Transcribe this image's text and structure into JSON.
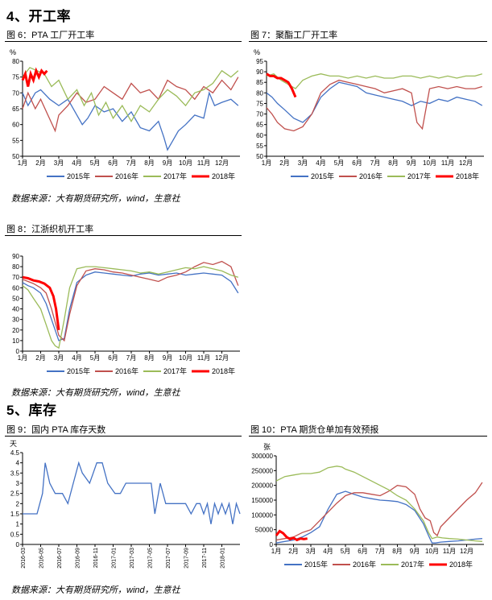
{
  "sections": {
    "s4": "4、开工率",
    "s5": "5、库存"
  },
  "sources": [
    "数据来源：大有期货研究所，wind，生意社",
    "数据来源：大有期货研究所，wind，生意社",
    "数据来源：大有期货研究所，wind，生意社"
  ],
  "colors": {
    "y2015": "#4472c4",
    "y2016": "#c0504d",
    "y2017": "#9bbb59",
    "y2018": "#ff0000",
    "line": "#4472c4"
  },
  "chart_data": [
    {
      "id": "fig6",
      "type": "line",
      "caption": "图 6：PTA 工厂开工率",
      "unit": "%",
      "ylim": [
        50,
        80
      ],
      "yticks": [
        50,
        55,
        60,
        65,
        70,
        75,
        80
      ],
      "categories": [
        "1月",
        "2月",
        "3月",
        "4月",
        "5月",
        "6月",
        "7月",
        "8月",
        "9月",
        "10月",
        "11月",
        "12月"
      ],
      "series": [
        {
          "name": "2015年",
          "key": "y2015",
          "x": [
            0,
            0.3,
            0.7,
            1,
            1.5,
            2,
            2.5,
            3,
            3.3,
            3.6,
            4,
            4.5,
            5,
            5.5,
            6,
            6.5,
            7,
            7.5,
            7.8,
            8,
            8.3,
            8.6,
            9,
            9.5,
            10,
            10.3,
            10.6,
            11,
            11.5,
            11.9
          ],
          "y": [
            70,
            66,
            70,
            71,
            68,
            66,
            68,
            63,
            60,
            62,
            66,
            64,
            65,
            61,
            64,
            59,
            58,
            61,
            56,
            52,
            55,
            58,
            60,
            63,
            62,
            70,
            66,
            67,
            68,
            66
          ]
        },
        {
          "name": "2016年",
          "key": "y2016",
          "x": [
            0,
            0.3,
            0.7,
            1,
            1.4,
            1.8,
            2,
            2.5,
            3,
            3.5,
            4,
            4.5,
            5,
            5.5,
            6,
            6.5,
            7,
            7.5,
            8,
            8.5,
            9,
            9.5,
            10,
            10.5,
            11,
            11.5,
            11.9
          ],
          "y": [
            65,
            70,
            65,
            68,
            63,
            58,
            63,
            66,
            70,
            67,
            68,
            72,
            70,
            68,
            73,
            70,
            71,
            68,
            74,
            72,
            71,
            68,
            72,
            70,
            74,
            71,
            75
          ]
        },
        {
          "name": "2017年",
          "key": "y2017",
          "x": [
            0,
            0.4,
            0.8,
            1.2,
            1.6,
            2,
            2.5,
            3,
            3.4,
            3.8,
            4.2,
            4.6,
            5,
            5.5,
            6,
            6.5,
            7,
            7.5,
            8,
            8.5,
            9,
            9.5,
            10,
            10.5,
            11,
            11.5,
            11.9
          ],
          "y": [
            75,
            78,
            77,
            76,
            72,
            74,
            68,
            71,
            66,
            70,
            63,
            67,
            62,
            66,
            61,
            66,
            64,
            68,
            71,
            69,
            66,
            70,
            71,
            73,
            77,
            75,
            77
          ]
        },
        {
          "name": "2018年",
          "key": "y2018",
          "x": [
            0,
            0.15,
            0.3,
            0.45,
            0.6,
            0.75,
            0.9,
            1.05,
            1.2,
            1.35
          ],
          "y": [
            74,
            76,
            72,
            76,
            74,
            77,
            75,
            77,
            76,
            77
          ]
        }
      ]
    },
    {
      "id": "fig7",
      "type": "line",
      "caption": "图 7：聚酯工厂开工率",
      "unit": "%",
      "ylim": [
        50,
        95
      ],
      "yticks": [
        50,
        55,
        60,
        65,
        70,
        75,
        80,
        85,
        90,
        95
      ],
      "categories": [
        "1月",
        "2月",
        "3月",
        "4月",
        "5月",
        "6月",
        "7月",
        "8月",
        "9月",
        "10月",
        "11月",
        "12月"
      ],
      "series": [
        {
          "name": "2015年",
          "key": "y2015",
          "x": [
            0,
            0.3,
            0.6,
            1,
            1.5,
            2,
            2.5,
            3,
            3.5,
            4,
            4.5,
            5,
            5.5,
            6,
            6.5,
            7,
            7.5,
            8,
            8.5,
            9,
            9.5,
            10,
            10.5,
            11,
            11.5,
            11.9
          ],
          "y": [
            80,
            78,
            75,
            72,
            68,
            66,
            70,
            78,
            82,
            85,
            84,
            83,
            80,
            79,
            78,
            77,
            76,
            74,
            76,
            75,
            77,
            76,
            78,
            77,
            76,
            74
          ]
        },
        {
          "name": "2016年",
          "key": "y2016",
          "x": [
            0,
            0.3,
            0.6,
            1,
            1.5,
            2,
            2.5,
            3,
            3.5,
            4,
            4.5,
            5,
            5.5,
            6,
            6.5,
            7,
            7.5,
            8,
            8.3,
            8.6,
            9,
            9.5,
            10,
            10.5,
            11,
            11.5,
            11.9
          ],
          "y": [
            73,
            70,
            66,
            63,
            62,
            64,
            70,
            80,
            84,
            86,
            85,
            84,
            83,
            82,
            80,
            81,
            82,
            80,
            66,
            63,
            82,
            83,
            82,
            83,
            82,
            82,
            83
          ]
        },
        {
          "name": "2017年",
          "key": "y2017",
          "x": [
            0,
            0.4,
            0.8,
            1.2,
            1.6,
            2,
            2.5,
            3,
            3.5,
            4,
            4.5,
            5,
            5.5,
            6,
            6.5,
            7,
            7.5,
            8,
            8.5,
            9,
            9.5,
            10,
            10.5,
            11,
            11.5,
            11.9
          ],
          "y": [
            88,
            89,
            86,
            84,
            82,
            86,
            88,
            89,
            88,
            88,
            87,
            88,
            87,
            88,
            87,
            87,
            88,
            88,
            87,
            88,
            87,
            88,
            87,
            88,
            88,
            89
          ]
        },
        {
          "name": "2018年",
          "key": "y2018",
          "x": [
            0,
            0.2,
            0.4,
            0.6,
            0.8,
            1,
            1.2,
            1.4,
            1.6
          ],
          "y": [
            89,
            88,
            88,
            87,
            87,
            86,
            85,
            82,
            78
          ]
        }
      ]
    },
    {
      "id": "fig8",
      "type": "line",
      "caption": "图 8：江浙织机开工率",
      "unit": "",
      "ylim": [
        0,
        90
      ],
      "yticks": [
        0,
        10,
        20,
        30,
        40,
        50,
        60,
        70,
        80,
        90
      ],
      "categories": [
        "1月",
        "2月",
        "3月",
        "4月",
        "5月",
        "6月",
        "7月",
        "8月",
        "9月",
        "10月",
        "11月",
        "12月"
      ],
      "series": [
        {
          "name": "2015年",
          "key": "y2015",
          "x": [
            0,
            0.3,
            0.6,
            1,
            1.3,
            1.6,
            2,
            2.3,
            2.6,
            3,
            3.5,
            4,
            4.5,
            5,
            5.5,
            6,
            6.5,
            7,
            7.5,
            8,
            8.5,
            9,
            9.5,
            10,
            10.5,
            11,
            11.5,
            11.9
          ],
          "y": [
            65,
            62,
            60,
            55,
            45,
            30,
            10,
            12,
            40,
            65,
            72,
            75,
            74,
            73,
            72,
            71,
            73,
            74,
            72,
            73,
            74,
            72,
            73,
            74,
            73,
            72,
            66,
            55
          ]
        },
        {
          "name": "2016年",
          "key": "y2016",
          "x": [
            0,
            0.3,
            0.6,
            1,
            1.3,
            1.6,
            2,
            2.3,
            2.6,
            3,
            3.5,
            4,
            4.5,
            5,
            5.5,
            6,
            6.5,
            7,
            7.5,
            8,
            8.5,
            9,
            9.5,
            10,
            10.5,
            11,
            11.5,
            11.9
          ],
          "y": [
            68,
            66,
            64,
            60,
            55,
            40,
            15,
            10,
            35,
            62,
            76,
            78,
            77,
            75,
            74,
            72,
            70,
            68,
            66,
            70,
            72,
            75,
            80,
            84,
            82,
            85,
            80,
            62
          ]
        },
        {
          "name": "2017年",
          "key": "y2017",
          "x": [
            0,
            0.3,
            0.6,
            1,
            1.3,
            1.6,
            1.8,
            2,
            2.3,
            2.6,
            3,
            3.5,
            4,
            4.5,
            5,
            5.5,
            6,
            6.5,
            7,
            7.5,
            8,
            8.5,
            9,
            9.5,
            10,
            10.5,
            11,
            11.5,
            11.9
          ],
          "y": [
            62,
            58,
            50,
            40,
            25,
            10,
            5,
            3,
            30,
            60,
            78,
            80,
            80,
            79,
            78,
            77,
            76,
            74,
            75,
            73,
            75,
            77,
            79,
            78,
            80,
            78,
            76,
            72,
            70
          ]
        },
        {
          "name": "2018年",
          "key": "y2018",
          "x": [
            0,
            0.3,
            0.6,
            0.9,
            1.2,
            1.5,
            1.7,
            1.85,
            2
          ],
          "y": [
            70,
            69,
            67,
            66,
            64,
            60,
            52,
            40,
            20
          ]
        }
      ]
    },
    {
      "id": "fig9",
      "type": "line",
      "caption": "图 9：国内 PTA 库存天数",
      "unit": "天",
      "ylim": [
        0,
        4.5
      ],
      "yticks": [
        0,
        0.5,
        1,
        1.5,
        2,
        2.5,
        3,
        3.5,
        4,
        4.5
      ],
      "categories": [
        "2016-03",
        "2016-05",
        "2016-07",
        "2016-09",
        "2016-11",
        "2017-01",
        "2017-03",
        "2017-05",
        "2017-07",
        "2017-09",
        "2017-11",
        "2018-01"
      ],
      "series": [
        {
          "name": "",
          "key": "line",
          "x": [
            0,
            0.8,
            1.1,
            1.25,
            1.5,
            1.8,
            2.2,
            2.5,
            2.8,
            3.1,
            3.3,
            3.7,
            3.9,
            4.1,
            4.4,
            4.7,
            5.1,
            5.4,
            5.7,
            6,
            6.3,
            6.6,
            6.9,
            7.1,
            7.3,
            7.6,
            7.9,
            8.2,
            8.6,
            9,
            9.3,
            9.6,
            9.8,
            10,
            10.2,
            10.4,
            10.6,
            10.8,
            11,
            11.2,
            11.4,
            11.6,
            11.8,
            12
          ],
          "y": [
            1.5,
            1.5,
            2.5,
            4,
            3,
            2.5,
            2.5,
            2,
            3,
            4,
            3.5,
            3,
            3.5,
            4,
            4,
            3,
            2.5,
            2.5,
            3,
            3,
            3,
            3,
            3,
            3,
            1.5,
            3,
            2,
            2,
            2,
            2,
            1.5,
            2,
            2,
            1.5,
            2,
            1,
            2,
            1.5,
            2,
            1.5,
            2,
            1,
            2,
            1.5
          ]
        }
      ]
    },
    {
      "id": "fig10",
      "type": "line",
      "caption": "图 10：PTA 期货仓单加有效预报",
      "unit": "张",
      "ylim": [
        0,
        300000
      ],
      "yticks": [
        0,
        50000,
        100000,
        150000,
        200000,
        250000,
        300000
      ],
      "categories": [
        "1月",
        "2月",
        "3月",
        "4月",
        "5月",
        "6月",
        "7月",
        "8月",
        "9月",
        "10月",
        "11月",
        "12月"
      ],
      "series": [
        {
          "name": "2015年",
          "key": "y2015",
          "x": [
            0,
            0.5,
            1,
            1.5,
            2,
            2.5,
            3,
            3.5,
            4,
            4.5,
            5,
            5.5,
            6,
            6.5,
            7,
            7.5,
            8,
            8.5,
            8.8,
            9,
            9.2,
            9.5,
            10,
            10.5,
            11,
            11.5,
            11.9
          ],
          "y": [
            5000,
            10000,
            15000,
            25000,
            40000,
            60000,
            120000,
            170000,
            180000,
            170000,
            160000,
            155000,
            150000,
            148000,
            145000,
            135000,
            115000,
            70000,
            30000,
            5000,
            5000,
            8000,
            10000,
            12000,
            15000,
            18000,
            20000
          ]
        },
        {
          "name": "2016年",
          "key": "y2016",
          "x": [
            0,
            0.5,
            1,
            1.5,
            2,
            2.5,
            3,
            3.5,
            4,
            4.5,
            5,
            5.5,
            6,
            6.5,
            7,
            7.5,
            8,
            8.3,
            8.6,
            8.9,
            9.1,
            9.3,
            9.5,
            10,
            10.5,
            11,
            11.5,
            11.9
          ],
          "y": [
            15000,
            20000,
            25000,
            40000,
            50000,
            80000,
            110000,
            140000,
            165000,
            175000,
            175000,
            170000,
            165000,
            180000,
            200000,
            195000,
            170000,
            120000,
            90000,
            80000,
            40000,
            30000,
            60000,
            90000,
            120000,
            150000,
            175000,
            210000
          ]
        },
        {
          "name": "2017年",
          "key": "y2017",
          "x": [
            0,
            0.5,
            1,
            1.5,
            2,
            2.5,
            3,
            3.5,
            3.8,
            4,
            4.5,
            5,
            5.5,
            6,
            6.5,
            7,
            7.5,
            8,
            8.5,
            8.8,
            9,
            9.3,
            9.6,
            10,
            10.5,
            11,
            11.5,
            11.9
          ],
          "y": [
            215000,
            230000,
            235000,
            240000,
            240000,
            245000,
            260000,
            265000,
            262000,
            255000,
            245000,
            230000,
            215000,
            200000,
            185000,
            165000,
            150000,
            120000,
            80000,
            40000,
            20000,
            25000,
            22000,
            20000,
            18000,
            15000,
            12000,
            10000
          ]
        },
        {
          "name": "2018年",
          "key": "y2018",
          "x": [
            0,
            0.2,
            0.4,
            0.6,
            0.8,
            1,
            1.2,
            1.4,
            1.6,
            1.8
          ],
          "y": [
            30000,
            45000,
            38000,
            25000,
            18000,
            22000,
            15000,
            20000,
            18000,
            20000
          ]
        }
      ]
    }
  ]
}
